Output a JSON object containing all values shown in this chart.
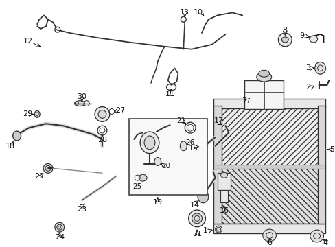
{
  "bg_color": "#ffffff",
  "fg_color": "#111111",
  "figsize": [
    4.89,
    3.6
  ],
  "dpi": 100
}
